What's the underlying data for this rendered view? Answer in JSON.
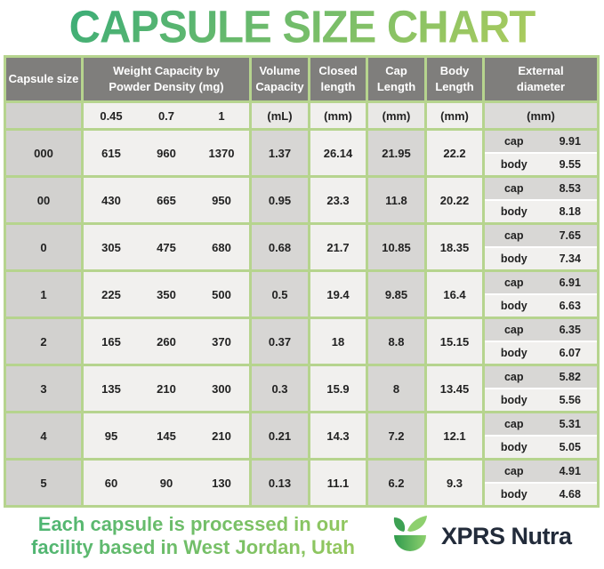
{
  "title": "CAPSULE SIZE CHART",
  "table": {
    "headers": {
      "capsule_size": "Capsule size",
      "weight_capacity": "Weight Capacity by\nPowder Density (mg)",
      "volume_capacity": "Volume\nCapacity",
      "closed_length": "Closed\nlength",
      "cap_length": "Cap\nLength",
      "body_length": "Body\nLength",
      "external_diameter": "External\ndiameter"
    },
    "units": {
      "densities": [
        "0.45",
        "0.7",
        "1"
      ],
      "volume": "(mL)",
      "closed": "(mm)",
      "cap": "(mm)",
      "body": "(mm)",
      "external": "(mm)"
    },
    "ext_row_labels": {
      "cap": "cap",
      "body": "body"
    }
  },
  "chart_data": {
    "type": "table",
    "title": "CAPSULE SIZE CHART",
    "columns": [
      "Capsule size",
      "Weight Capacity by Powder Density (mg) at 0.45",
      "Weight Capacity by Powder Density (mg) at 0.7",
      "Weight Capacity by Powder Density (mg) at 1",
      "Volume Capacity (mL)",
      "Closed length (mm)",
      "Cap Length (mm)",
      "Body Length (mm)",
      "External diameter cap (mm)",
      "External diameter body (mm)"
    ],
    "rows": [
      {
        "size": "000",
        "weight_mg": [
          "615",
          "960",
          "1370"
        ],
        "volume_ml": "1.37",
        "closed_mm": "26.14",
        "cap_mm": "21.95",
        "body_mm": "22.2",
        "ext_cap_mm": "9.91",
        "ext_body_mm": "9.55"
      },
      {
        "size": "00",
        "weight_mg": [
          "430",
          "665",
          "950"
        ],
        "volume_ml": "0.95",
        "closed_mm": "23.3",
        "cap_mm": "11.8",
        "body_mm": "20.22",
        "ext_cap_mm": "8.53",
        "ext_body_mm": "8.18"
      },
      {
        "size": "0",
        "weight_mg": [
          "305",
          "475",
          "680"
        ],
        "volume_ml": "0.68",
        "closed_mm": "21.7",
        "cap_mm": "10.85",
        "body_mm": "18.35",
        "ext_cap_mm": "7.65",
        "ext_body_mm": "7.34"
      },
      {
        "size": "1",
        "weight_mg": [
          "225",
          "350",
          "500"
        ],
        "volume_ml": "0.5",
        "closed_mm": "19.4",
        "cap_mm": "9.85",
        "body_mm": "16.4",
        "ext_cap_mm": "6.91",
        "ext_body_mm": "6.63"
      },
      {
        "size": "2",
        "weight_mg": [
          "165",
          "260",
          "370"
        ],
        "volume_ml": "0.37",
        "closed_mm": "18",
        "cap_mm": "8.8",
        "body_mm": "15.15",
        "ext_cap_mm": "6.35",
        "ext_body_mm": "6.07"
      },
      {
        "size": "3",
        "weight_mg": [
          "135",
          "210",
          "300"
        ],
        "volume_ml": "0.3",
        "closed_mm": "15.9",
        "cap_mm": "8",
        "body_mm": "13.45",
        "ext_cap_mm": "5.82",
        "ext_body_mm": "5.56"
      },
      {
        "size": "4",
        "weight_mg": [
          "95",
          "145",
          "210"
        ],
        "volume_ml": "0.21",
        "closed_mm": "14.3",
        "cap_mm": "7.2",
        "body_mm": "12.1",
        "ext_cap_mm": "5.31",
        "ext_body_mm": "5.05"
      },
      {
        "size": "5",
        "weight_mg": [
          "60",
          "90",
          "130"
        ],
        "volume_ml": "0.13",
        "closed_mm": "11.1",
        "cap_mm": "6.2",
        "body_mm": "9.3",
        "ext_cap_mm": "4.91",
        "ext_body_mm": "4.68"
      }
    ]
  },
  "footer": {
    "note": "Each capsule is processed in our\nfacility based in West Jordan, Utah",
    "brand_name": "XPRS Nutra",
    "logo_icon": "leaf-bowl-icon"
  },
  "colors": {
    "border_green": "#b6d48e",
    "header_gray": "#7f7e7c",
    "cell_gray": "#d7d6d4",
    "cell_light": "#f1f0ee",
    "title_gradient_start": "#3fae76",
    "title_gradient_end": "#a9cb5e",
    "brand_navy": "#222b3a",
    "logo_dark_green": "#3da153",
    "logo_light_green": "#8ed06e"
  }
}
